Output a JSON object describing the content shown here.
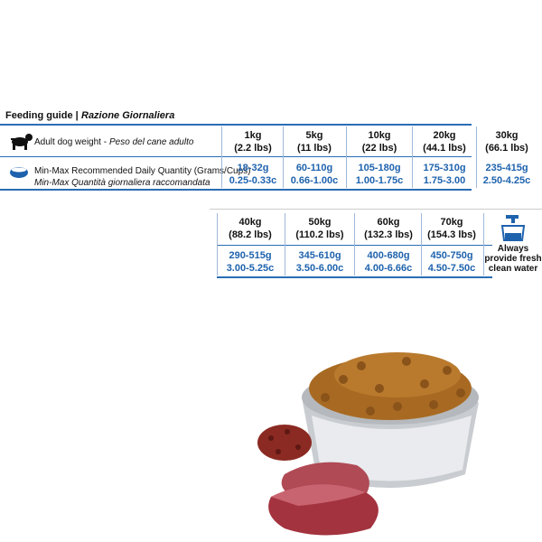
{
  "header": {
    "title": "Feeding guide |",
    "title_it": "Razione Giornaliera"
  },
  "labels": {
    "weight": "Adult dog weight -",
    "weight_it": "Peso del cane adulto",
    "quantity": "Min-Max Recommended Daily Quantity (Grams/Cups)",
    "quantity_it": "Min-Max Quantità giornaliera raccomandata"
  },
  "table1": {
    "columns": [
      {
        "kg": "1kg",
        "lbs": "(2.2 lbs)",
        "grams": "18-32g",
        "cups": "0.25-0.33c"
      },
      {
        "kg": "5kg",
        "lbs": "(11 lbs)",
        "grams": "60-110g",
        "cups": "0.66-1.00c"
      },
      {
        "kg": "10kg",
        "lbs": "(22 lbs)",
        "grams": "105-180g",
        "cups": "1.00-1.75c"
      },
      {
        "kg": "20kg",
        "lbs": "(44.1 lbs)",
        "grams": "175-310g",
        "cups": "1.75-3.00"
      },
      {
        "kg": "30kg",
        "lbs": "(66.1 lbs)",
        "grams": "235-415g",
        "cups": "2.50-4.25c"
      }
    ]
  },
  "table2": {
    "columns": [
      {
        "kg": "40kg",
        "lbs": "(88.2 lbs)",
        "grams": "290-515g",
        "cups": "3.00-5.25c"
      },
      {
        "kg": "50kg",
        "lbs": "(110.2 lbs)",
        "grams": "345-610g",
        "cups": "3.50-6.00c"
      },
      {
        "kg": "60kg",
        "lbs": "(132.3 lbs)",
        "grams": "400-680g",
        "cups": "4.00-6.66c"
      },
      {
        "kg": "70kg",
        "lbs": "(154.3 lbs)",
        "grams": "450-750g",
        "cups": "4.50-7.50c"
      }
    ]
  },
  "water_note": [
    "Always",
    "provide fresh",
    "clean water"
  ]
}
